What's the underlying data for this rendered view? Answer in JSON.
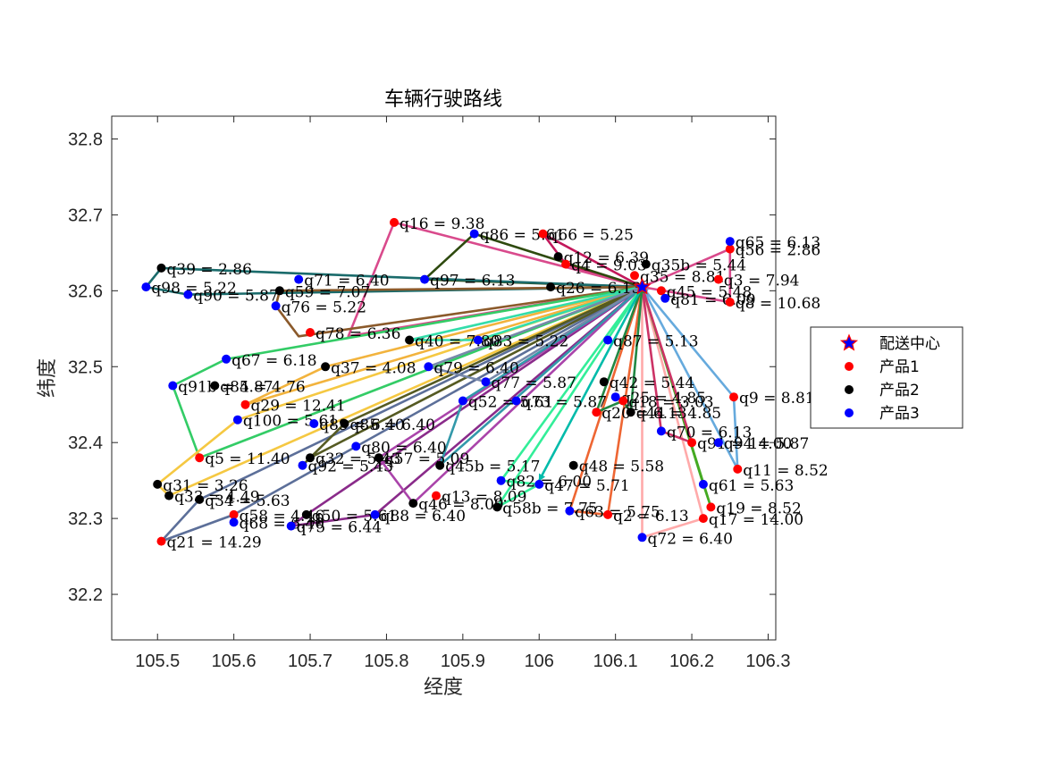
{
  "chart_data": {
    "type": "scatter",
    "title": "车辆行驶路线",
    "xlabel": "经度",
    "ylabel": "纬度",
    "xlim": [
      105.44,
      106.31
    ],
    "ylim": [
      32.14,
      32.83
    ],
    "xticks": [
      105.5,
      105.6,
      105.7,
      105.8,
      105.9,
      106,
      106.1,
      106.2,
      106.3
    ],
    "xtick_labels": [
      "105.5",
      "105.6",
      "105.7",
      "105.8",
      "105.9",
      "106",
      "106.1",
      "106.2",
      "106.3"
    ],
    "yticks": [
      32.2,
      32.3,
      32.4,
      32.5,
      32.6,
      32.7,
      32.8
    ],
    "ytick_labels": [
      "32.2",
      "32.3",
      "32.4",
      "32.5",
      "32.6",
      "32.7",
      "32.8"
    ],
    "grid": false,
    "legend_position": "right",
    "depot": {
      "name": "配送中心",
      "x": 106.135,
      "y": 32.605,
      "color": "#0000ff",
      "edge_color": "#ff0000"
    },
    "series": [
      {
        "name": "产品1",
        "color": "#ff0000",
        "points": [
          {
            "x": 105.81,
            "y": 32.69,
            "label": "q16 = 9.38"
          },
          {
            "x": 106.005,
            "y": 32.675,
            "label": "q66 = 5.25"
          },
          {
            "x": 105.7,
            "y": 32.545,
            "label": "q78 = 6.36"
          },
          {
            "x": 105.615,
            "y": 32.45,
            "label": "q29 = 12.41"
          },
          {
            "x": 105.555,
            "y": 32.38,
            "label": "q5 = 11.40"
          },
          {
            "x": 105.6,
            "y": 32.305,
            "label": "q58 = 4.46"
          },
          {
            "x": 105.505,
            "y": 32.27,
            "label": "q21 = 14.29"
          },
          {
            "x": 105.865,
            "y": 32.33,
            "label": "q13 = 8.09"
          },
          {
            "x": 106.09,
            "y": 32.305,
            "label": "q2 = 6.13"
          },
          {
            "x": 106.215,
            "y": 32.3,
            "label": "q17 = 14.00"
          },
          {
            "x": 106.26,
            "y": 32.365,
            "label": "q11 = 8.52"
          },
          {
            "x": 106.255,
            "y": 32.46,
            "label": "q9 = 8.81"
          },
          {
            "x": 106.25,
            "y": 32.585,
            "label": "q8 = 10.68"
          },
          {
            "x": 106.125,
            "y": 32.62,
            "label": "q35 = 8.81"
          },
          {
            "x": 106.16,
            "y": 32.6,
            "label": "q45 = 5.48"
          },
          {
            "x": 106.25,
            "y": 32.655,
            "label": "q56 = 2.86"
          },
          {
            "x": 106.11,
            "y": 32.455,
            "label": "q18 = 3.03"
          },
          {
            "x": 106.075,
            "y": 32.44,
            "label": "q20 = 6.13"
          },
          {
            "x": 106.2,
            "y": 32.4,
            "label": "q91 = 14.00"
          },
          {
            "x": 106.225,
            "y": 32.315,
            "label": "q19 = 8.52"
          },
          {
            "x": 106.235,
            "y": 32.615,
            "label": "q3 = 7.94"
          },
          {
            "x": 106.035,
            "y": 32.635,
            "label": "q4 = 9.03"
          }
        ]
      },
      {
        "name": "产品2",
        "color": "#000000",
        "points": [
          {
            "x": 105.505,
            "y": 32.63,
            "label": "q39 = 2.86"
          },
          {
            "x": 105.66,
            "y": 32.6,
            "label": "q59 = 7.07"
          },
          {
            "x": 105.575,
            "y": 32.475,
            "label": "q84 = 4.76"
          },
          {
            "x": 105.72,
            "y": 32.5,
            "label": "q37 = 4.08"
          },
          {
            "x": 105.5,
            "y": 32.345,
            "label": "q31 = 3.26"
          },
          {
            "x": 105.515,
            "y": 32.33,
            "label": "q33 = 4.49"
          },
          {
            "x": 105.555,
            "y": 32.325,
            "label": "q34 = 5.63"
          },
          {
            "x": 105.7,
            "y": 32.38,
            "label": "q32 = 5.43"
          },
          {
            "x": 105.745,
            "y": 32.425,
            "label": "q85 = 6.40"
          },
          {
            "x": 105.79,
            "y": 32.38,
            "label": "q57 = 5.09"
          },
          {
            "x": 105.835,
            "y": 32.32,
            "label": "q46 = 8.09"
          },
          {
            "x": 105.945,
            "y": 32.315,
            "label": "q58b = 7.75"
          },
          {
            "x": 106.045,
            "y": 32.37,
            "label": "q48 = 5.58"
          },
          {
            "x": 105.87,
            "y": 32.37,
            "label": "q45b = 5.17"
          },
          {
            "x": 106.085,
            "y": 32.48,
            "label": "q42 = 5.44"
          },
          {
            "x": 106.025,
            "y": 32.645,
            "label": "q12 = 6.39"
          },
          {
            "x": 106.14,
            "y": 32.635,
            "label": "q35b = 5.44"
          },
          {
            "x": 106.015,
            "y": 32.605,
            "label": "q26 = 6.13"
          },
          {
            "x": 105.83,
            "y": 32.535,
            "label": "q40 = 7.80"
          },
          {
            "x": 105.695,
            "y": 32.305,
            "label": "q50 = 5.61"
          },
          {
            "x": 106.12,
            "y": 32.44,
            "label": "q44 = 4.85"
          }
        ]
      },
      {
        "name": "产品3",
        "color": "#0000ff",
        "points": [
          {
            "x": 105.485,
            "y": 32.605,
            "label": "q98 = 5.22"
          },
          {
            "x": 105.54,
            "y": 32.595,
            "label": "q90 = 5.87"
          },
          {
            "x": 105.685,
            "y": 32.615,
            "label": "q71 = 6.40"
          },
          {
            "x": 105.655,
            "y": 32.58,
            "label": "q76 = 5.22"
          },
          {
            "x": 105.85,
            "y": 32.615,
            "label": "q97 = 6.13"
          },
          {
            "x": 105.915,
            "y": 32.675,
            "label": "q86 = 5.61"
          },
          {
            "x": 106.25,
            "y": 32.665,
            "label": "q65 = 6.13"
          },
          {
            "x": 106.165,
            "y": 32.59,
            "label": "q81 = 6.09"
          },
          {
            "x": 105.59,
            "y": 32.51,
            "label": "q67 = 6.18"
          },
          {
            "x": 105.52,
            "y": 32.475,
            "label": "q91b = 5.87"
          },
          {
            "x": 105.605,
            "y": 32.43,
            "label": "q100 = 5.61"
          },
          {
            "x": 105.705,
            "y": 32.425,
            "label": "q89 = 6.40"
          },
          {
            "x": 105.855,
            "y": 32.5,
            "label": "q79 = 6.40"
          },
          {
            "x": 105.92,
            "y": 32.535,
            "label": "q83 = 5.22"
          },
          {
            "x": 105.9,
            "y": 32.455,
            "label": "q52 = 5.61"
          },
          {
            "x": 105.93,
            "y": 32.48,
            "label": "q77 = 5.87"
          },
          {
            "x": 105.97,
            "y": 32.455,
            "label": "q73 = 5.87"
          },
          {
            "x": 105.76,
            "y": 32.395,
            "label": "q80 = 6.40"
          },
          {
            "x": 105.69,
            "y": 32.37,
            "label": "q92 = 5.43"
          },
          {
            "x": 105.6,
            "y": 32.295,
            "label": "q68 = 6.40"
          },
          {
            "x": 105.675,
            "y": 32.29,
            "label": "q75 = 6.44"
          },
          {
            "x": 105.785,
            "y": 32.305,
            "label": "q88 = 6.40"
          },
          {
            "x": 105.95,
            "y": 32.35,
            "label": "q82 = 6.00"
          },
          {
            "x": 106.0,
            "y": 32.345,
            "label": "q47 = 5.71"
          },
          {
            "x": 106.04,
            "y": 32.31,
            "label": "q63 = 5.75"
          },
          {
            "x": 106.135,
            "y": 32.275,
            "label": "q72 = 6.40"
          },
          {
            "x": 106.215,
            "y": 32.345,
            "label": "q61 = 5.63"
          },
          {
            "x": 106.235,
            "y": 32.4,
            "label": "q94 = 5.87"
          },
          {
            "x": 106.16,
            "y": 32.415,
            "label": "q70 = 6.13"
          },
          {
            "x": 106.1,
            "y": 32.46,
            "label": "q25 = 4.85"
          },
          {
            "x": 106.09,
            "y": 32.535,
            "label": "q87 = 5.13"
          }
        ]
      }
    ],
    "routes": [
      {
        "color": "#d94a8c",
        "path": [
          [
            106.135,
            32.605
          ],
          [
            106.25,
            32.655
          ],
          [
            106.25,
            32.585
          ],
          [
            106.135,
            32.605
          ]
        ]
      },
      {
        "color": "#c2185b",
        "path": [
          [
            106.135,
            32.605
          ],
          [
            106.005,
            32.675
          ],
          [
            106.035,
            32.635
          ],
          [
            106.135,
            32.605
          ]
        ]
      },
      {
        "color": "#d94a8c",
        "path": [
          [
            106.135,
            32.605
          ],
          [
            105.81,
            32.69
          ],
          [
            105.75,
            32.54
          ],
          [
            106.135,
            32.605
          ]
        ]
      },
      {
        "color": "#2e4a0e",
        "path": [
          [
            106.135,
            32.605
          ],
          [
            105.915,
            32.675
          ],
          [
            105.85,
            32.615
          ],
          [
            106.135,
            32.605
          ]
        ]
      },
      {
        "color": "#1a6b6b",
        "path": [
          [
            106.135,
            32.605
          ],
          [
            105.505,
            32.63
          ],
          [
            105.485,
            32.605
          ],
          [
            105.54,
            32.595
          ],
          [
            106.135,
            32.605
          ]
        ]
      },
      {
        "color": "#8b5a2b",
        "path": [
          [
            106.135,
            32.605
          ],
          [
            105.66,
            32.6
          ],
          [
            105.655,
            32.58
          ],
          [
            105.685,
            32.54
          ],
          [
            106.135,
            32.605
          ]
        ]
      },
      {
        "color": "#33cc66",
        "path": [
          [
            106.135,
            32.605
          ],
          [
            105.59,
            32.51
          ],
          [
            105.52,
            32.475
          ],
          [
            105.555,
            32.38
          ],
          [
            106.135,
            32.605
          ]
        ]
      },
      {
        "color": "#f2b33d",
        "path": [
          [
            106.135,
            32.605
          ],
          [
            105.615,
            32.45
          ],
          [
            105.72,
            32.5
          ],
          [
            106.135,
            32.605
          ]
        ]
      },
      {
        "color": "#f5c842",
        "path": [
          [
            106.135,
            32.605
          ],
          [
            105.605,
            32.43
          ],
          [
            105.5,
            32.345
          ],
          [
            105.515,
            32.33
          ],
          [
            106.135,
            32.605
          ]
        ]
      },
      {
        "color": "#5c6f99",
        "path": [
          [
            106.135,
            32.605
          ],
          [
            105.555,
            32.325
          ],
          [
            105.505,
            32.27
          ],
          [
            105.6,
            32.305
          ],
          [
            106.135,
            32.605
          ]
        ]
      },
      {
        "color": "#8a2b8a",
        "path": [
          [
            106.135,
            32.605
          ],
          [
            105.695,
            32.305
          ],
          [
            105.675,
            32.29
          ],
          [
            105.785,
            32.305
          ],
          [
            106.135,
            32.605
          ]
        ]
      },
      {
        "color": "#555a22",
        "path": [
          [
            106.135,
            32.605
          ],
          [
            105.7,
            32.38
          ],
          [
            105.69,
            32.37
          ],
          [
            105.745,
            32.425
          ],
          [
            106.135,
            32.605
          ]
        ]
      },
      {
        "color": "#aa44aa",
        "path": [
          [
            106.135,
            32.605
          ],
          [
            105.835,
            32.32
          ],
          [
            105.79,
            32.38
          ],
          [
            106.135,
            32.605
          ]
        ]
      },
      {
        "color": "#3399aa",
        "path": [
          [
            106.135,
            32.605
          ],
          [
            105.87,
            32.37
          ],
          [
            105.9,
            32.455
          ],
          [
            106.135,
            32.605
          ]
        ]
      },
      {
        "color": "#33ee99",
        "path": [
          [
            106.135,
            32.605
          ],
          [
            105.95,
            32.35
          ],
          [
            106.0,
            32.345
          ],
          [
            105.945,
            32.315
          ],
          [
            106.135,
            32.605
          ]
        ]
      },
      {
        "color": "#ee6633",
        "path": [
          [
            106.135,
            32.605
          ],
          [
            106.04,
            32.31
          ],
          [
            106.09,
            32.305
          ],
          [
            106.135,
            32.605
          ]
        ]
      },
      {
        "color": "#ffaaaa",
        "path": [
          [
            106.135,
            32.605
          ],
          [
            106.135,
            32.275
          ],
          [
            106.215,
            32.3
          ],
          [
            106.135,
            32.605
          ]
        ]
      },
      {
        "color": "#66aadd",
        "path": [
          [
            106.135,
            32.605
          ],
          [
            106.26,
            32.365
          ],
          [
            106.255,
            32.46
          ],
          [
            106.135,
            32.605
          ]
        ]
      },
      {
        "color": "#44aa22",
        "path": [
          [
            106.135,
            32.605
          ],
          [
            106.225,
            32.315
          ],
          [
            106.215,
            32.345
          ],
          [
            106.135,
            32.605
          ]
        ]
      },
      {
        "color": "#cc3366",
        "path": [
          [
            106.135,
            32.605
          ],
          [
            106.16,
            32.415
          ],
          [
            106.2,
            32.4
          ],
          [
            106.135,
            32.605
          ]
        ]
      },
      {
        "color": "#228844",
        "path": [
          [
            106.135,
            32.605
          ],
          [
            106.075,
            32.44
          ],
          [
            106.11,
            32.455
          ],
          [
            106.12,
            32.44
          ],
          [
            106.135,
            32.605
          ]
        ]
      },
      {
        "color": "#33ddaa",
        "path": [
          [
            106.135,
            32.605
          ],
          [
            105.92,
            32.535
          ],
          [
            105.83,
            32.535
          ],
          [
            106.135,
            32.605
          ]
        ]
      },
      {
        "color": "#7788aa",
        "path": [
          [
            106.135,
            32.605
          ],
          [
            105.855,
            32.5
          ],
          [
            105.93,
            32.48
          ],
          [
            106.135,
            32.605
          ]
        ]
      },
      {
        "color": "#00bbaa",
        "path": [
          [
            106.135,
            32.605
          ],
          [
            106.0,
            32.35
          ]
        ]
      }
    ]
  }
}
